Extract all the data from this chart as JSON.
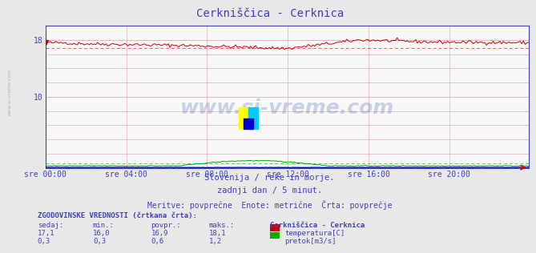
{
  "title": "Cerkniščica - Cerknica",
  "title_color": "#4040c0",
  "bg_color": "#f0f0f0",
  "plot_bg_color": "#f8f8f8",
  "grid_color": "#e8b0b0",
  "x_tick_labels": [
    "sre 00:00",
    "sre 04:00",
    "sre 08:00",
    "sre 12:00",
    "sre 16:00",
    "sre 20:00"
  ],
  "x_tick_positions": [
    0,
    48,
    96,
    144,
    192,
    240
  ],
  "total_points": 288,
  "ylim_min": 0,
  "ylim_max": 20,
  "ytick_vals": [
    10,
    18
  ],
  "temp_color": "#cc0000",
  "flow_color": "#00aa00",
  "level_color": "#0000cc",
  "watermark_text": "www.si-vreme.com",
  "subtitle1": "Slovenija / reke in morje.",
  "subtitle2": "zadnji dan / 5 minut.",
  "subtitle3": "Meritve: povprečne  Enote: metrične  Črta: povprečje",
  "subtitle_color": "#4040c0",
  "legend_title": "Cerkniščica - Cerknica",
  "stats_header": "ZGODOVINSKE VREDNOSTI (črtkana črta):",
  "stats_color": "#4040c0",
  "stats_cols": [
    "sedaj:",
    "min.:",
    "povpr.:",
    "maks.:"
  ],
  "stats_temp": [
    17.1,
    16.0,
    16.9,
    18.1
  ],
  "stats_flow": [
    0.3,
    0.3,
    0.6,
    1.2
  ],
  "left_label": "www.si-vreme.com",
  "avg_temp": 16.9,
  "avg_flow": 0.6
}
